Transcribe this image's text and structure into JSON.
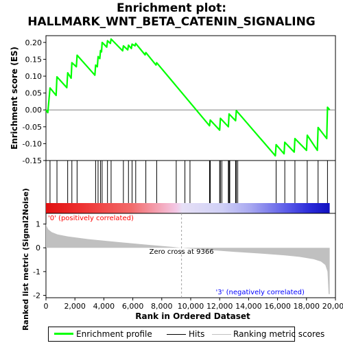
{
  "title_line1": "Enrichment plot:",
  "title_line2": "HALLMARK_WNT_BETA_CATENIN_SIGNALING",
  "colors": {
    "es_line": "#00ff00",
    "hits": "#000000",
    "metric_fill": "#c0c0c0",
    "zero_line": "#a0a0a0",
    "pos_label": "#ff0000",
    "neg_label": "#0000ff"
  },
  "chart_data": [
    {
      "type": "line",
      "name": "enrichment-profile",
      "ylabel": "Enrichment score (ES)",
      "xlim": [
        0,
        20000
      ],
      "ylim": [
        -0.15,
        0.22
      ],
      "yticks": [
        "0.20",
        "0.15",
        "0.10",
        "0.05",
        "0.00",
        "-0.05",
        "-0.10",
        "-0.15"
      ],
      "ytick_values": [
        0.2,
        0.15,
        0.1,
        0.05,
        0.0,
        -0.05,
        -0.1,
        -0.15
      ],
      "points": [
        [
          0,
          0.0
        ],
        [
          130,
          -0.008
        ],
        [
          280,
          0.065
        ],
        [
          700,
          0.043
        ],
        [
          760,
          0.098
        ],
        [
          1440,
          0.066
        ],
        [
          1500,
          0.11
        ],
        [
          1740,
          0.094
        ],
        [
          1790,
          0.14
        ],
        [
          2100,
          0.128
        ],
        [
          2150,
          0.162
        ],
        [
          3380,
          0.103
        ],
        [
          3430,
          0.133
        ],
        [
          3550,
          0.128
        ],
        [
          3600,
          0.158
        ],
        [
          3720,
          0.152
        ],
        [
          3770,
          0.176
        ],
        [
          3840,
          0.172
        ],
        [
          3880,
          0.2
        ],
        [
          4200,
          0.186
        ],
        [
          4250,
          0.205
        ],
        [
          4450,
          0.197
        ],
        [
          4500,
          0.21
        ],
        [
          5300,
          0.175
        ],
        [
          5350,
          0.19
        ],
        [
          5650,
          0.178
        ],
        [
          5700,
          0.192
        ],
        [
          5900,
          0.182
        ],
        [
          5950,
          0.195
        ],
        [
          6150,
          0.19
        ],
        [
          6200,
          0.197
        ],
        [
          6850,
          0.163
        ],
        [
          6900,
          0.17
        ],
        [
          7600,
          0.133
        ],
        [
          7650,
          0.14
        ],
        [
          11300,
          -0.047
        ],
        [
          11350,
          -0.03
        ],
        [
          12000,
          -0.06
        ],
        [
          12050,
          -0.025
        ],
        [
          12600,
          -0.05
        ],
        [
          12650,
          -0.012
        ],
        [
          13100,
          -0.032
        ],
        [
          13150,
          -0.002
        ],
        [
          15850,
          -0.136
        ],
        [
          15900,
          -0.103
        ],
        [
          16450,
          -0.13
        ],
        [
          16500,
          -0.096
        ],
        [
          17150,
          -0.125
        ],
        [
          17200,
          -0.085
        ],
        [
          18000,
          -0.12
        ],
        [
          18050,
          -0.075
        ],
        [
          18750,
          -0.12
        ],
        [
          18800,
          -0.052
        ],
        [
          19400,
          -0.085
        ],
        [
          19450,
          0.008
        ],
        [
          19600,
          0.0
        ]
      ]
    },
    {
      "type": "scatter",
      "name": "hits",
      "xlim": [
        0,
        20000
      ],
      "x": [
        280,
        760,
        1500,
        1790,
        2150,
        3430,
        3600,
        3770,
        3880,
        4250,
        4500,
        5350,
        5700,
        5950,
        6200,
        6900,
        7650,
        9000,
        9600,
        9950,
        11300,
        11350,
        12000,
        12050,
        12150,
        12600,
        12650,
        12700,
        13100,
        13150,
        13250,
        15900,
        16500,
        17200,
        18050,
        18800,
        19450
      ]
    },
    {
      "type": "area",
      "name": "ranked-list-metric",
      "ylabel": "Ranked list metric (Signal2Noise)",
      "xlabel": "Rank in Ordered Dataset",
      "xlim": [
        0,
        20000
      ],
      "xticks": [
        "0",
        "2,000",
        "4,000",
        "6,000",
        "8,000",
        "10,000",
        "12,000",
        "14,000",
        "16,000",
        "18,000",
        "20,000"
      ],
      "xtick_values": [
        0,
        2000,
        4000,
        6000,
        8000,
        10000,
        12000,
        14000,
        16000,
        18000,
        20000
      ],
      "ylim": [
        -2.1,
        1.45
      ],
      "yticks": [
        "1",
        "0",
        "-1",
        "-2"
      ],
      "ytick_values": [
        1,
        0,
        -1,
        -2
      ],
      "points": [
        [
          0,
          1.0
        ],
        [
          60,
          0.9
        ],
        [
          150,
          0.78
        ],
        [
          400,
          0.66
        ],
        [
          800,
          0.56
        ],
        [
          1500,
          0.48
        ],
        [
          3000,
          0.36
        ],
        [
          5000,
          0.24
        ],
        [
          7000,
          0.13
        ],
        [
          8500,
          0.05
        ],
        [
          9366,
          0.0
        ],
        [
          11000,
          -0.08
        ],
        [
          13000,
          -0.17
        ],
        [
          15000,
          -0.25
        ],
        [
          16500,
          -0.32
        ],
        [
          17500,
          -0.38
        ],
        [
          18500,
          -0.48
        ],
        [
          19000,
          -0.58
        ],
        [
          19300,
          -0.72
        ],
        [
          19450,
          -1.0
        ],
        [
          19530,
          -1.95
        ],
        [
          19600,
          -1.95
        ]
      ],
      "zero_cross_label": "Zero cross at 9366",
      "zero_cross": 9366,
      "pos_label": "'0' (positively correlated)",
      "neg_label": "'3' (negatively correlated)"
    }
  ],
  "legend": {
    "items": [
      {
        "label": "Enrichment profile"
      },
      {
        "label": "Hits"
      },
      {
        "label": "Ranking metric scores"
      }
    ]
  }
}
